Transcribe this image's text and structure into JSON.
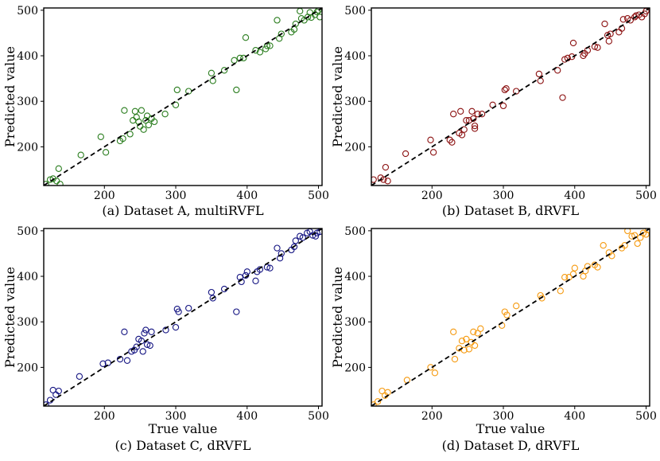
{
  "chart_data": [
    {
      "type": "scatter",
      "caption": "(a) Dataset A, multiRVFL",
      "xlabel": "",
      "ylabel": "Predicted value",
      "color": "#2a7d1e",
      "xlim": [
        115,
        505
      ],
      "ylim": [
        115,
        505
      ],
      "xticks": [
        200,
        300,
        400,
        500
      ],
      "yticks": [
        200,
        300,
        400,
        500
      ],
      "points": [
        [
          118,
          118
        ],
        [
          124,
          128
        ],
        [
          128,
          130
        ],
        [
          133,
          125
        ],
        [
          136,
          152
        ],
        [
          138,
          118
        ],
        [
          167,
          182
        ],
        [
          195,
          222
        ],
        [
          202,
          188
        ],
        [
          222,
          213
        ],
        [
          226,
          218
        ],
        [
          228,
          280
        ],
        [
          236,
          228
        ],
        [
          240,
          258
        ],
        [
          243,
          278
        ],
        [
          245,
          265
        ],
        [
          248,
          255
        ],
        [
          250,
          245
        ],
        [
          252,
          280
        ],
        [
          255,
          238
        ],
        [
          258,
          258
        ],
        [
          260,
          268
        ],
        [
          262,
          248
        ],
        [
          266,
          262
        ],
        [
          270,
          255
        ],
        [
          285,
          272
        ],
        [
          300,
          292
        ],
        [
          302,
          325
        ],
        [
          318,
          322
        ],
        [
          350,
          362
        ],
        [
          352,
          345
        ],
        [
          368,
          368
        ],
        [
          382,
          390
        ],
        [
          385,
          325
        ],
        [
          390,
          395
        ],
        [
          395,
          395
        ],
        [
          398,
          440
        ],
        [
          412,
          412
        ],
        [
          418,
          408
        ],
        [
          426,
          415
        ],
        [
          428,
          422
        ],
        [
          432,
          422
        ],
        [
          442,
          478
        ],
        [
          445,
          438
        ],
        [
          448,
          448
        ],
        [
          462,
          452
        ],
        [
          466,
          458
        ],
        [
          468,
          470
        ],
        [
          474,
          498
        ],
        [
          476,
          482
        ],
        [
          480,
          478
        ],
        [
          485,
          485
        ],
        [
          488,
          495
        ],
        [
          490,
          484
        ],
        [
          495,
          490
        ],
        [
          498,
          496
        ],
        [
          500,
          500
        ],
        [
          502,
          485
        ]
      ]
    },
    {
      "type": "scatter",
      "caption": "(b) Dataset B, dRVFL",
      "xlabel": "",
      "ylabel": "Predicted value",
      "color": "#8b1010",
      "xlim": [
        115,
        505
      ],
      "ylim": [
        115,
        505
      ],
      "xticks": [
        200,
        300,
        400,
        500
      ],
      "yticks": [
        200,
        300,
        400,
        500
      ],
      "points": [
        [
          118,
          128
        ],
        [
          128,
          132
        ],
        [
          132,
          128
        ],
        [
          135,
          155
        ],
        [
          138,
          125
        ],
        [
          163,
          185
        ],
        [
          198,
          215
        ],
        [
          202,
          188
        ],
        [
          225,
          215
        ],
        [
          228,
          210
        ],
        [
          230,
          272
        ],
        [
          238,
          230
        ],
        [
          240,
          278
        ],
        [
          242,
          226
        ],
        [
          245,
          238
        ],
        [
          248,
          258
        ],
        [
          252,
          258
        ],
        [
          256,
          278
        ],
        [
          258,
          262
        ],
        [
          260,
          246
        ],
        [
          260,
          240
        ],
        [
          264,
          272
        ],
        [
          270,
          272
        ],
        [
          285,
          292
        ],
        [
          300,
          290
        ],
        [
          302,
          325
        ],
        [
          304,
          328
        ],
        [
          318,
          322
        ],
        [
          350,
          360
        ],
        [
          352,
          345
        ],
        [
          376,
          368
        ],
        [
          383,
          308
        ],
        [
          386,
          392
        ],
        [
          390,
          395
        ],
        [
          396,
          398
        ],
        [
          398,
          428
        ],
        [
          412,
          400
        ],
        [
          414,
          405
        ],
        [
          418,
          412
        ],
        [
          428,
          420
        ],
        [
          432,
          418
        ],
        [
          442,
          470
        ],
        [
          446,
          445
        ],
        [
          448,
          432
        ],
        [
          450,
          448
        ],
        [
          462,
          452
        ],
        [
          466,
          460
        ],
        [
          468,
          480
        ],
        [
          474,
          482
        ],
        [
          478,
          478
        ],
        [
          484,
          485
        ],
        [
          486,
          488
        ],
        [
          490,
          490
        ],
        [
          494,
          485
        ],
        [
          498,
          492
        ],
        [
          500,
          498
        ]
      ]
    },
    {
      "type": "scatter",
      "caption": "(c) Dataset C, dRVFL",
      "xlabel": "True value",
      "ylabel": "Predicted value",
      "color": "#141482",
      "xlim": [
        115,
        505
      ],
      "ylim": [
        115,
        505
      ],
      "xticks": [
        200,
        300,
        400,
        500
      ],
      "yticks": [
        200,
        300,
        400,
        500
      ],
      "points": [
        [
          118,
          118
        ],
        [
          124,
          128
        ],
        [
          128,
          150
        ],
        [
          132,
          140
        ],
        [
          136,
          148
        ],
        [
          165,
          180
        ],
        [
          198,
          208
        ],
        [
          205,
          210
        ],
        [
          222,
          218
        ],
        [
          228,
          278
        ],
        [
          232,
          215
        ],
        [
          238,
          235
        ],
        [
          242,
          238
        ],
        [
          245,
          245
        ],
        [
          248,
          262
        ],
        [
          252,
          258
        ],
        [
          254,
          235
        ],
        [
          256,
          275
        ],
        [
          258,
          282
        ],
        [
          260,
          250
        ],
        [
          264,
          248
        ],
        [
          266,
          278
        ],
        [
          286,
          282
        ],
        [
          300,
          288
        ],
        [
          302,
          328
        ],
        [
          304,
          322
        ],
        [
          318,
          330
        ],
        [
          350,
          365
        ],
        [
          352,
          352
        ],
        [
          368,
          372
        ],
        [
          385,
          322
        ],
        [
          390,
          398
        ],
        [
          392,
          388
        ],
        [
          398,
          402
        ],
        [
          400,
          410
        ],
        [
          412,
          390
        ],
        [
          414,
          410
        ],
        [
          418,
          415
        ],
        [
          428,
          420
        ],
        [
          432,
          418
        ],
        [
          442,
          462
        ],
        [
          446,
          440
        ],
        [
          448,
          450
        ],
        [
          462,
          458
        ],
        [
          466,
          465
        ],
        [
          468,
          478
        ],
        [
          474,
          488
        ],
        [
          478,
          485
        ],
        [
          484,
          495
        ],
        [
          488,
          498
        ],
        [
          492,
          490
        ],
        [
          496,
          488
        ],
        [
          498,
          495
        ],
        [
          502,
          498
        ]
      ]
    },
    {
      "type": "scatter",
      "caption": "(d) Dataset D, dRVFL",
      "xlabel": "True value",
      "ylabel": "Predicted value",
      "color": "#f59a10",
      "xlim": [
        115,
        505
      ],
      "ylim": [
        115,
        505
      ],
      "xticks": [
        200,
        300,
        400,
        500
      ],
      "yticks": [
        200,
        300,
        400,
        500
      ],
      "points": [
        [
          118,
          118
        ],
        [
          124,
          125
        ],
        [
          130,
          148
        ],
        [
          134,
          138
        ],
        [
          138,
          145
        ],
        [
          165,
          172
        ],
        [
          198,
          200
        ],
        [
          204,
          188
        ],
        [
          230,
          278
        ],
        [
          232,
          218
        ],
        [
          238,
          242
        ],
        [
          242,
          258
        ],
        [
          245,
          238
        ],
        [
          248,
          262
        ],
        [
          252,
          240
        ],
        [
          255,
          255
        ],
        [
          258,
          278
        ],
        [
          260,
          248
        ],
        [
          264,
          275
        ],
        [
          268,
          285
        ],
        [
          298,
          292
        ],
        [
          302,
          322
        ],
        [
          305,
          315
        ],
        [
          318,
          335
        ],
        [
          352,
          358
        ],
        [
          354,
          352
        ],
        [
          380,
          368
        ],
        [
          386,
          398
        ],
        [
          392,
          398
        ],
        [
          398,
          405
        ],
        [
          400,
          418
        ],
        [
          412,
          400
        ],
        [
          415,
          412
        ],
        [
          418,
          422
        ],
        [
          428,
          425
        ],
        [
          432,
          420
        ],
        [
          440,
          468
        ],
        [
          448,
          452
        ],
        [
          452,
          445
        ],
        [
          466,
          462
        ],
        [
          470,
          468
        ],
        [
          474,
          500
        ],
        [
          480,
          488
        ],
        [
          484,
          490
        ],
        [
          488,
          472
        ],
        [
          492,
          485
        ],
        [
          496,
          495
        ],
        [
          500,
          492
        ],
        [
          503,
          502
        ]
      ]
    }
  ]
}
